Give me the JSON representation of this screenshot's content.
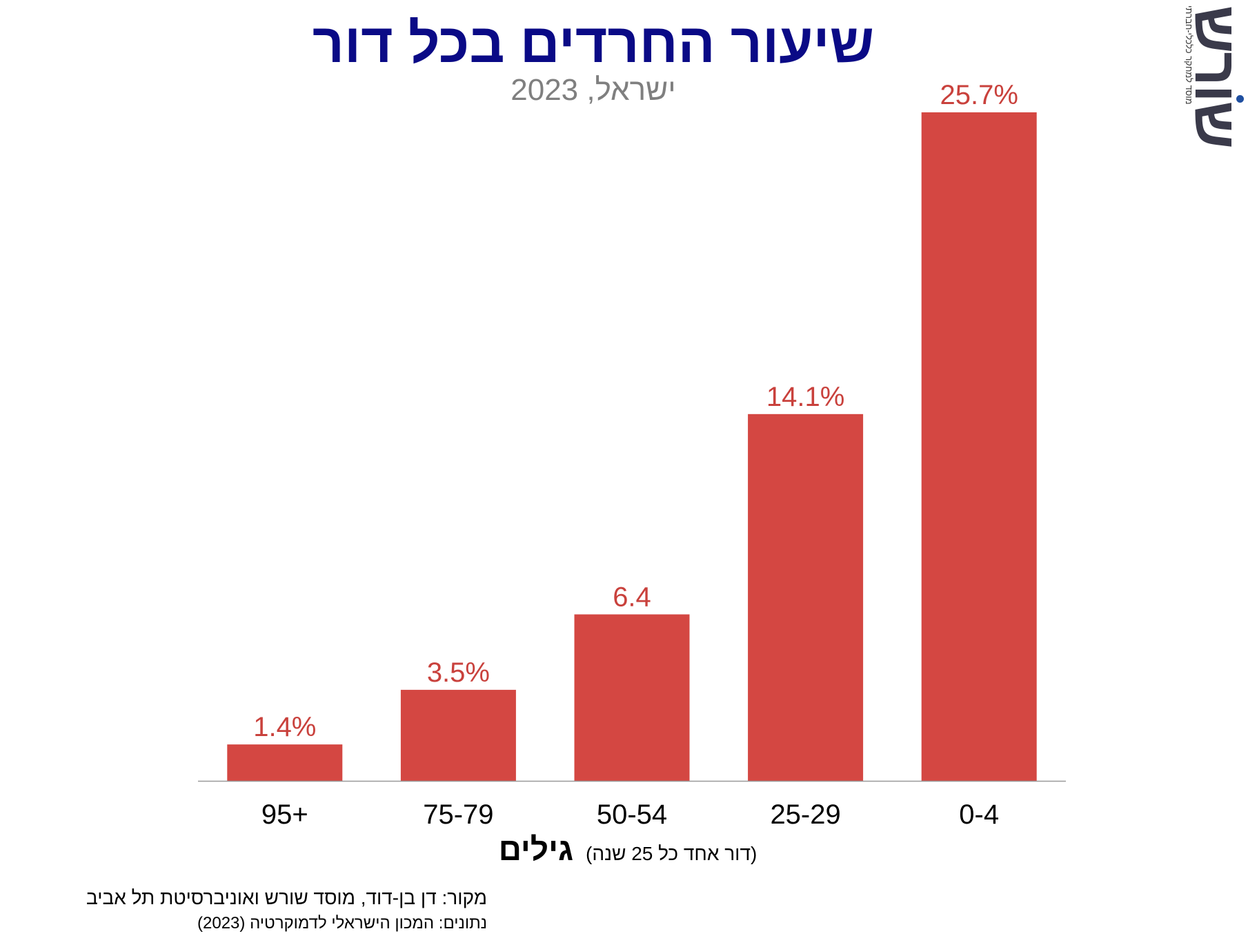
{
  "chart_data": {
    "type": "bar",
    "title": "שיעור החרדים בכל דור",
    "subtitle": "ישראל, 2023",
    "categories": [
      "95+",
      "75-79",
      "50-54",
      "25-29",
      "0-4"
    ],
    "values": [
      1.4,
      3.5,
      6.4,
      14.1,
      25.7
    ],
    "data_labels": [
      "1.4%",
      "3.5%",
      "6.4",
      "14.1%",
      "25.7%"
    ],
    "xlabel": "גילים",
    "xlabel_note": "(דור אחד כל 25 שנה)",
    "ylabel": "",
    "ylim": [
      0,
      25.7
    ],
    "grid": false,
    "legend": "none",
    "colors": {
      "bar": "#d44742",
      "data_label": "#c9413c",
      "title": "#0a0a86",
      "subtitle": "#7f7f7f",
      "axis": "#999999"
    }
  },
  "credits": {
    "source": "מקור:  דן בן-דוד, מוסד שורש ואוניברסיטת תל אביב",
    "data": "נתונים:  המכון הישראלי לדמוקרטיה (2023)"
  },
  "logo": {
    "word": "שורש",
    "tagline": "מוסד למחקר כלכלי-חברתי"
  }
}
